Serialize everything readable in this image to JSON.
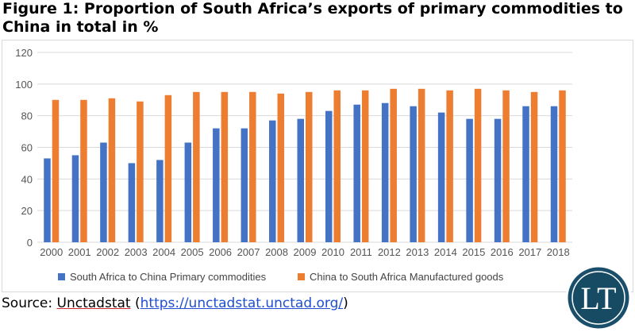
{
  "title": "Figure 1: Proportion of South Africa’s exports of primary commodities to China in total in %",
  "source": {
    "prefix": "Source: ",
    "name": "Unctadstat",
    "open": " (",
    "link": "https://unctadstat.unctad.org/",
    "close": ")"
  },
  "logo": {
    "text": "LT",
    "colors": {
      "ring": "#1a4f6b",
      "inner": "#174a63",
      "border": "#ffffff"
    }
  },
  "chart_data": {
    "type": "bar",
    "title": "",
    "xlabel": "",
    "ylabel": "",
    "ylim": [
      0,
      120
    ],
    "yticks": [
      0,
      20,
      40,
      60,
      80,
      100,
      120
    ],
    "grid": true,
    "legend_position": "bottom",
    "categories": [
      "2000",
      "2001",
      "2002",
      "2003",
      "2004",
      "2005",
      "2006",
      "2007",
      "2008",
      "2009",
      "2010",
      "2011",
      "2012",
      "2013",
      "2014",
      "2015",
      "2016",
      "2017",
      "2018"
    ],
    "series": [
      {
        "name": "South Africa to China Primary commodities",
        "color": "#4472c4",
        "values": [
          53,
          55,
          63,
          50,
          52,
          63,
          72,
          72,
          77,
          78,
          83,
          87,
          88,
          86,
          82,
          78,
          78,
          86,
          86
        ]
      },
      {
        "name": "China to South Africa Manufactured goods",
        "color": "#ed7d31",
        "values": [
          90,
          90,
          91,
          89,
          93,
          95,
          95,
          95,
          94,
          95,
          96,
          96,
          97,
          97,
          96,
          97,
          96,
          95,
          96
        ]
      }
    ]
  }
}
